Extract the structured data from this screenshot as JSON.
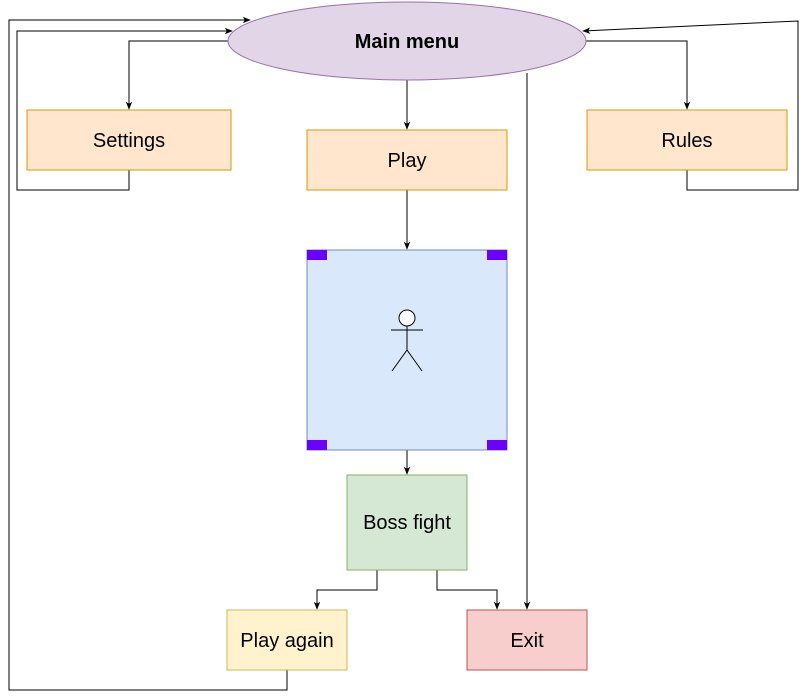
{
  "nodes": {
    "main_menu": {
      "label": "Main menu",
      "fill": "#e1d5e7",
      "stroke": "#9673a6"
    },
    "settings": {
      "label": "Settings",
      "fill": "#ffe6cc",
      "stroke": "#d79b00"
    },
    "play": {
      "label": "Play",
      "fill": "#ffe6cc",
      "stroke": "#d79b00"
    },
    "rules": {
      "label": "Rules",
      "fill": "#ffe6cc",
      "stroke": "#d79b00"
    },
    "game_area": {
      "fill": "#dae8fc",
      "stroke": "#6c8ebf",
      "corner_color": "#6a00ff"
    },
    "boss_fight": {
      "label": "Boss fight",
      "fill": "#d5e8d4",
      "stroke": "#82b366"
    },
    "play_again": {
      "label": "Play again",
      "fill": "#fff2cc",
      "stroke": "#d6b656"
    },
    "exit": {
      "label": "Exit",
      "fill": "#f8cecc",
      "stroke": "#b85450"
    }
  },
  "connector_color": "#000000",
  "icons": {
    "player": "stick-figure-icon",
    "arrowhead": "arrowhead-icon"
  }
}
